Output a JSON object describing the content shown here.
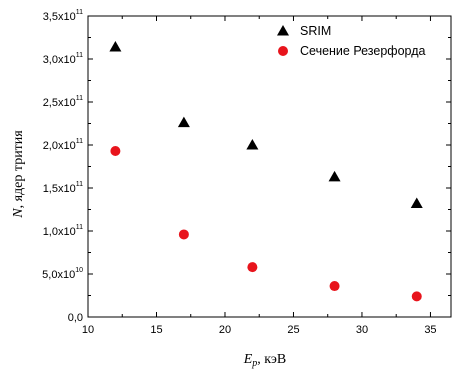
{
  "chart_data": {
    "type": "scatter",
    "title": "",
    "xlabel": {
      "symbol": "E",
      "subscript": "p",
      "unit": ", кэВ"
    },
    "ylabel": {
      "symbol": "N",
      "text": ", ядер трития"
    },
    "xlim": [
      10,
      36.5
    ],
    "ylim": [
      0,
      350000000000.0
    ],
    "x_ticks": [
      {
        "value": 10,
        "label": "10"
      },
      {
        "value": 15,
        "label": "15"
      },
      {
        "value": 20,
        "label": "20"
      },
      {
        "value": 25,
        "label": "25"
      },
      {
        "value": 30,
        "label": "30"
      },
      {
        "value": 35,
        "label": "35"
      }
    ],
    "y_ticks": [
      {
        "value": 0,
        "mantissa": "0,0",
        "exponent": ""
      },
      {
        "value": 50000000000.0,
        "mantissa": "5,0x10",
        "exponent": "10"
      },
      {
        "value": 100000000000.0,
        "mantissa": "1,0x10",
        "exponent": "11"
      },
      {
        "value": 150000000000.0,
        "mantissa": "1,5x10",
        "exponent": "11"
      },
      {
        "value": 200000000000.0,
        "mantissa": "2,0x10",
        "exponent": "11"
      },
      {
        "value": 250000000000.0,
        "mantissa": "2,5x10",
        "exponent": "11"
      },
      {
        "value": 300000000000.0,
        "mantissa": "3,0x10",
        "exponent": "11"
      },
      {
        "value": 350000000000.0,
        "mantissa": "3,5x10",
        "exponent": "11"
      }
    ],
    "grid": false,
    "legend_position": "top-right",
    "series": [
      {
        "name": "SRIM",
        "marker": "triangle",
        "color": "#000000",
        "points": [
          {
            "x": 12,
            "y": 314000000000.0
          },
          {
            "x": 17,
            "y": 226000000000.0
          },
          {
            "x": 22,
            "y": 200000000000.0
          },
          {
            "x": 28,
            "y": 163000000000.0
          },
          {
            "x": 34,
            "y": 132000000000.0
          }
        ]
      },
      {
        "name": "Сечение Резерфорда",
        "marker": "circle",
        "color": "#e8141c",
        "points": [
          {
            "x": 12,
            "y": 193000000000.0
          },
          {
            "x": 17,
            "y": 96000000000.0
          },
          {
            "x": 22,
            "y": 58000000000.0
          },
          {
            "x": 28,
            "y": 36000000000.0
          },
          {
            "x": 34,
            "y": 24000000000.0
          }
        ]
      }
    ]
  }
}
